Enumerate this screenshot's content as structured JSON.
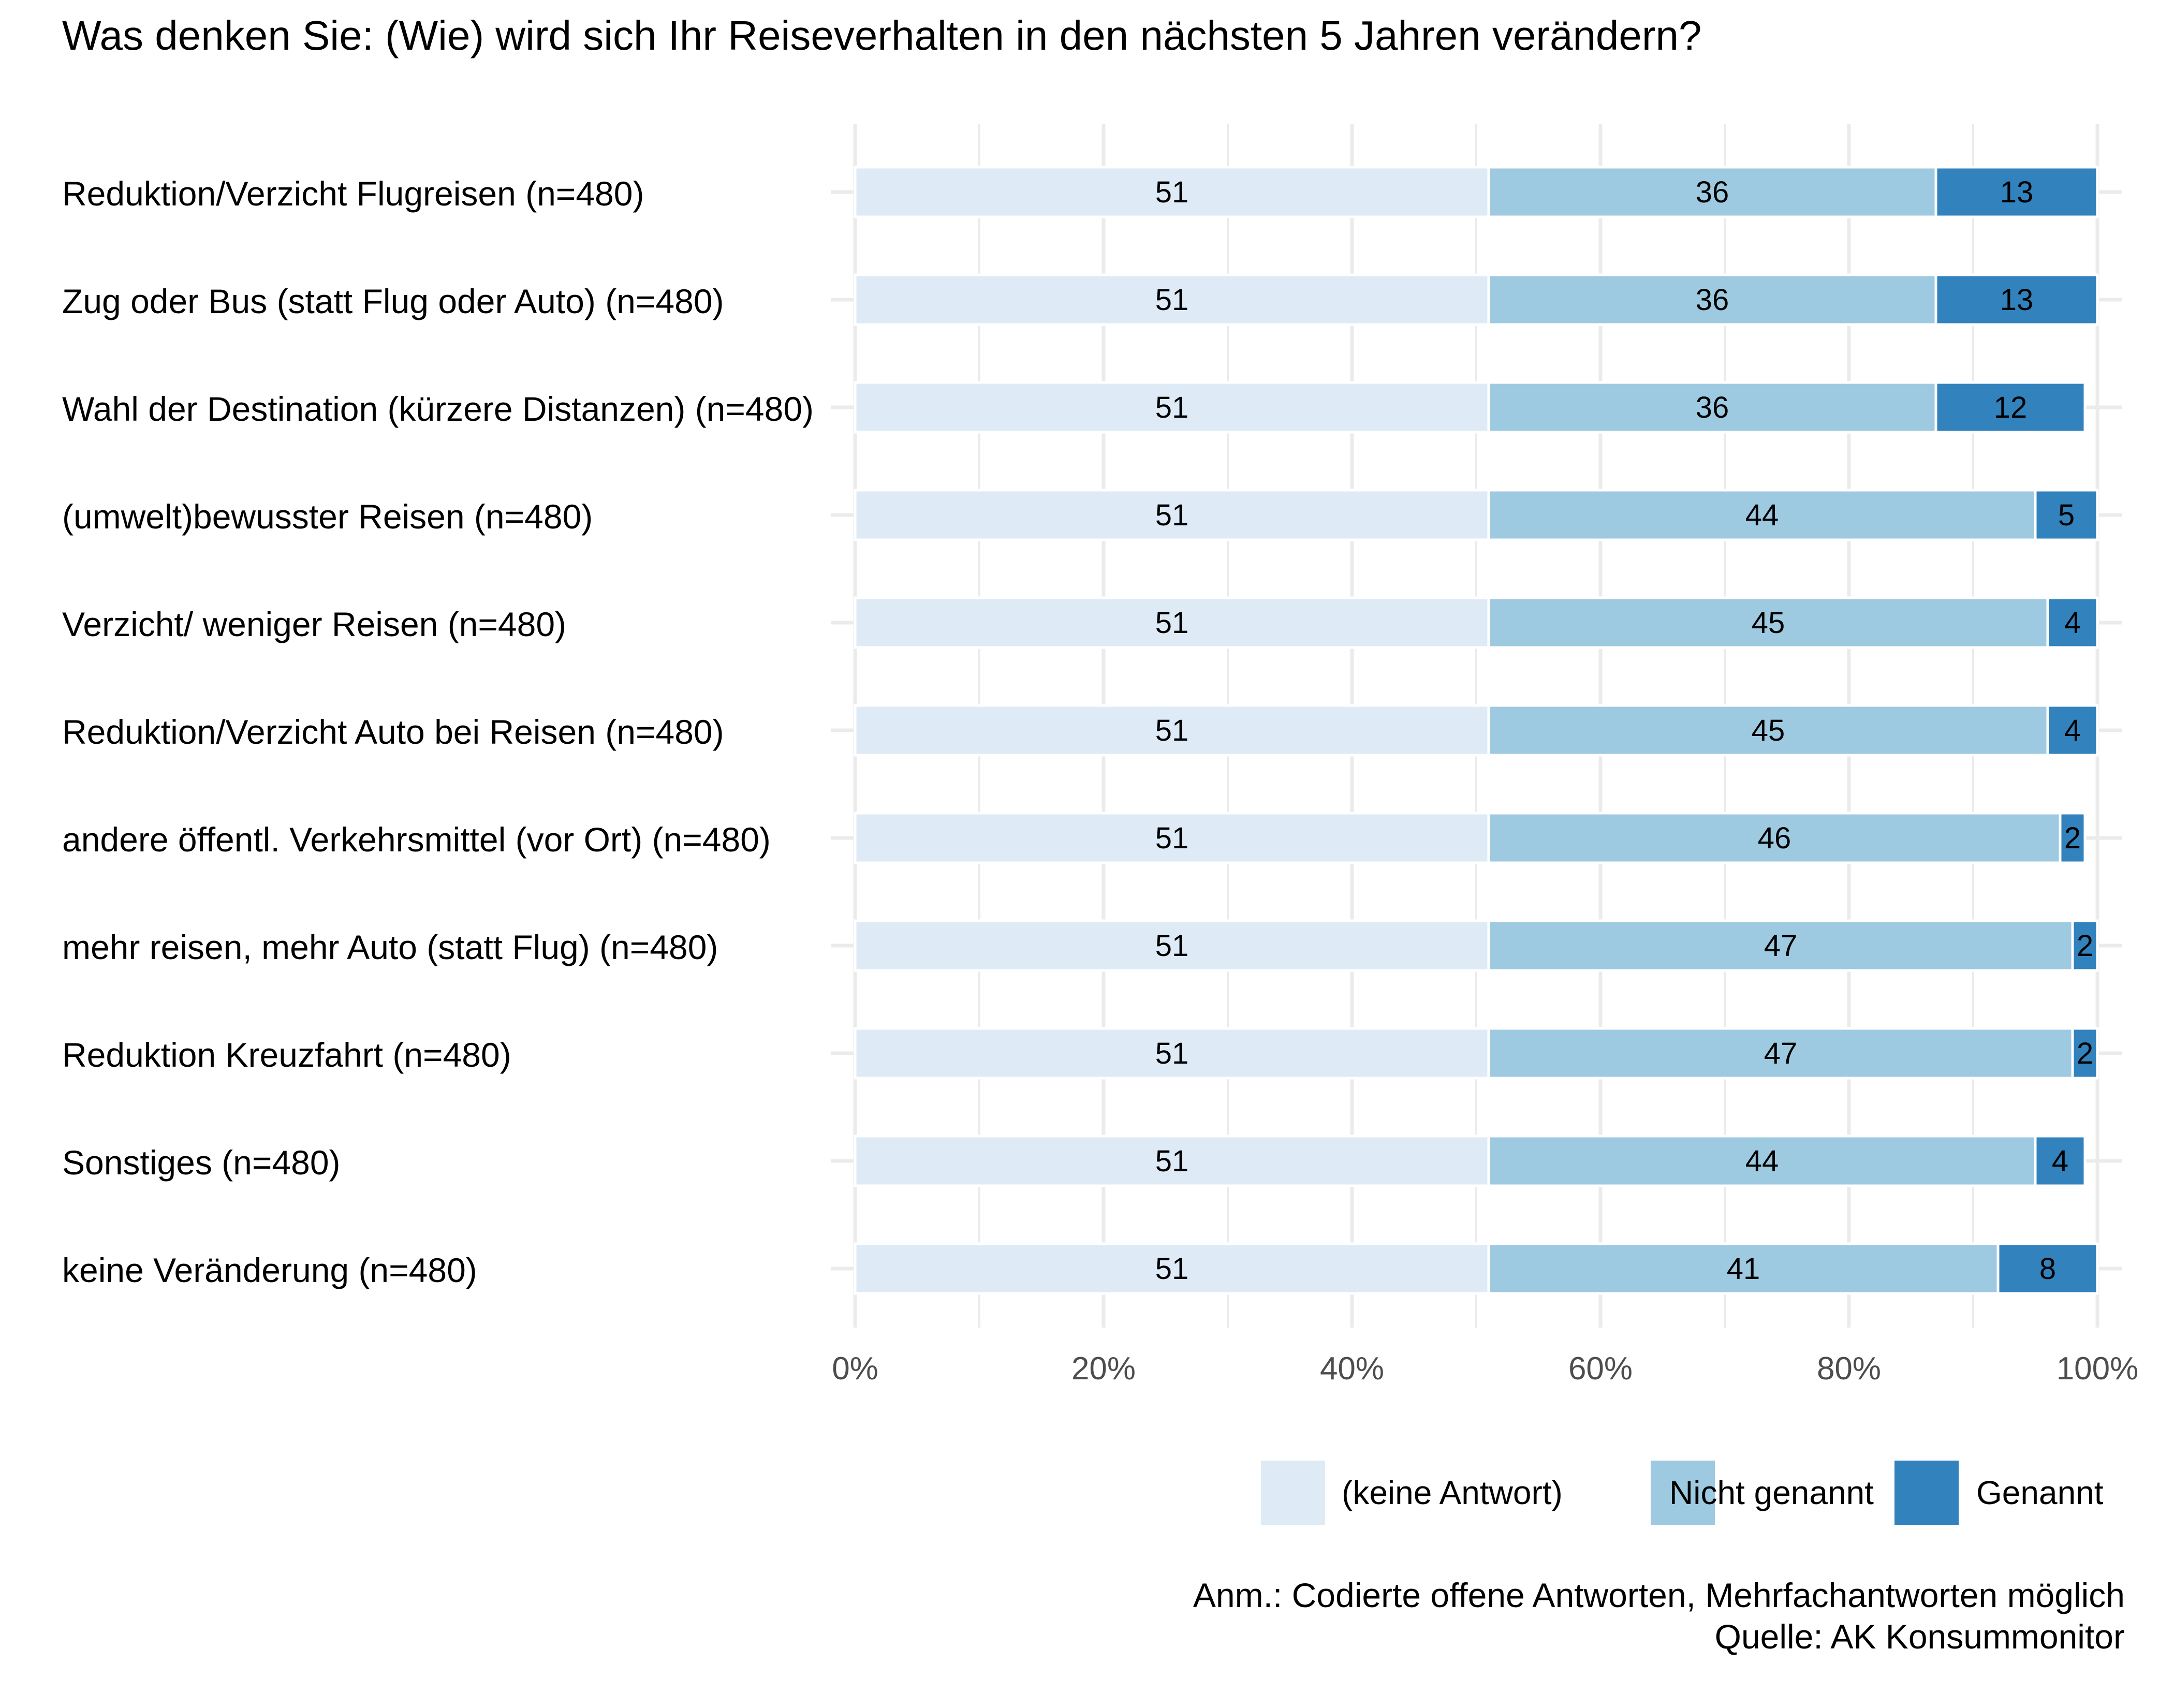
{
  "chart_data": {
    "type": "bar",
    "orientation": "horizontal",
    "stacked": true,
    "title": "Was denken Sie: (Wie) wird sich Ihr Reiseverhalten in den nächsten 5 Jahren verändern?",
    "xlabel": "",
    "ylabel": "",
    "xlim": [
      0,
      100
    ],
    "x_ticks": [
      "0%",
      "20%",
      "40%",
      "60%",
      "80%",
      "100%"
    ],
    "grid": true,
    "legend_position": "bottom-right",
    "categories": [
      "Reduktion/Verzicht Flugreisen (n=480)",
      "Zug oder Bus (statt Flug oder Auto) (n=480)",
      "Wahl der Destination (kürzere Distanzen) (n=480)",
      "(umwelt)bewusster Reisen (n=480)",
      "Verzicht/ weniger Reisen (n=480)",
      "Reduktion/Verzicht Auto bei Reisen (n=480)",
      "andere öffentl. Verkehrsmittel (vor Ort) (n=480)",
      "mehr reisen, mehr Auto (statt Flug) (n=480)",
      "Reduktion Kreuzfahrt (n=480)",
      "Sonstiges (n=480)",
      "keine Veränderung (n=480)"
    ],
    "series": [
      {
        "name": "(keine Antwort)",
        "color": "#deebf7",
        "values": [
          51,
          51,
          51,
          51,
          51,
          51,
          51,
          51,
          51,
          51,
          51
        ]
      },
      {
        "name": "Nicht genannt",
        "color": "#9ecae1",
        "values": [
          36,
          36,
          36,
          44,
          45,
          45,
          46,
          47,
          47,
          44,
          41
        ]
      },
      {
        "name": "Genannt",
        "color": "#3182bd",
        "values": [
          13,
          13,
          12,
          5,
          4,
          4,
          2,
          2,
          2,
          4,
          8
        ]
      }
    ],
    "note": "Anm.: Codierte offene Antworten, Mehrfachantworten möglich",
    "source": "Quelle: AK Konsummonitor"
  }
}
